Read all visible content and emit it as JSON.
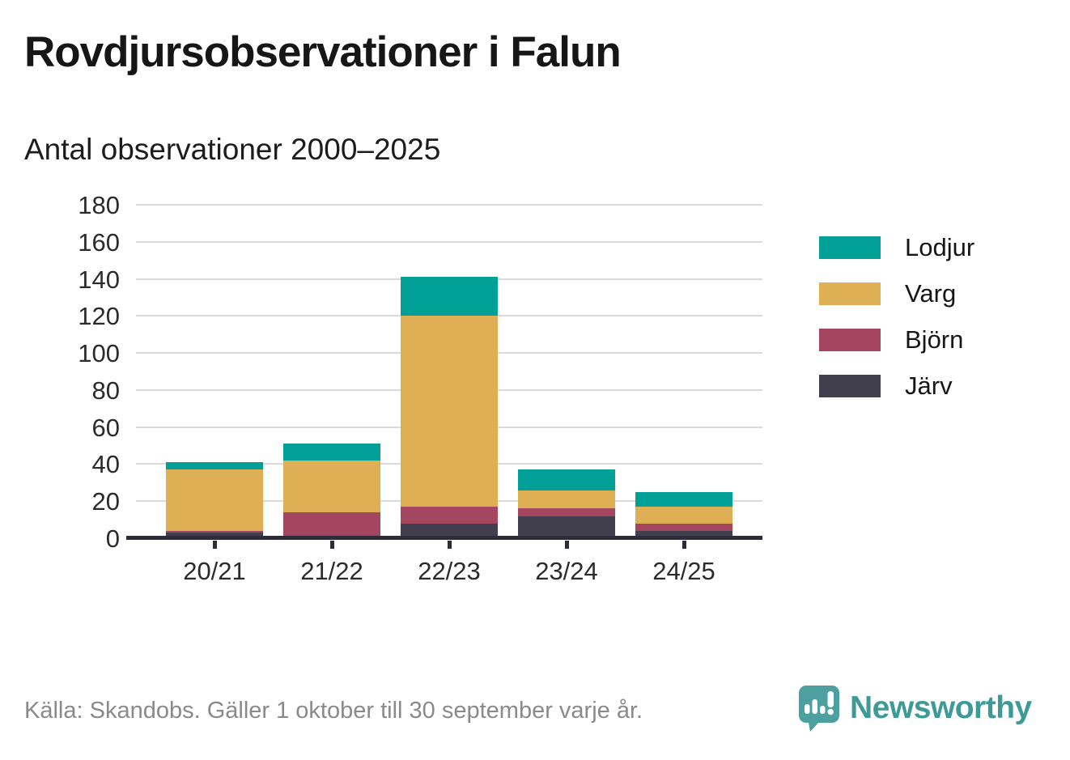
{
  "header": {
    "title": "Rovdjursobservationer i Falun",
    "subtitle": "Antal observationer 2000–2025"
  },
  "chart_data": {
    "type": "bar",
    "stacked": true,
    "title": "Rovdjursobservationer i Falun",
    "subtitle": "Antal observationer 2000–2025",
    "categories": [
      "20/21",
      "21/22",
      "22/23",
      "23/24",
      "24/25"
    ],
    "series": [
      {
        "name": "Järv",
        "color": "#413e4e",
        "values": [
          3,
          0,
          8,
          12,
          4
        ]
      },
      {
        "name": "Björn",
        "color": "#a4465f",
        "values": [
          1,
          14,
          9,
          4,
          4
        ]
      },
      {
        "name": "Varg",
        "color": "#dfaf55",
        "values": [
          33,
          28,
          103,
          10,
          9
        ]
      },
      {
        "name": "Lodjur",
        "color": "#00a096",
        "values": [
          4,
          9,
          21,
          11,
          8
        ]
      }
    ],
    "bar_totals": [
      41,
      51,
      141,
      37,
      25
    ],
    "legend_order": [
      "Lodjur",
      "Varg",
      "Björn",
      "Järv"
    ],
    "legend_position": "right",
    "xlabel": "",
    "ylabel": "",
    "ylim": [
      0,
      180
    ],
    "yticks": [
      0,
      20,
      40,
      60,
      80,
      100,
      120,
      140,
      160,
      180
    ],
    "grid": true
  },
  "footer": {
    "source": "Källa: Skandobs. Gäller 1 oktober till 30 september varje år.",
    "brand": "Newsworthy"
  },
  "colors": {
    "background": "#ffffff",
    "axis": "#2f2c3a",
    "gridline": "#dbdbdb",
    "title_text": "#161616",
    "tick_text": "#2b2b2b",
    "source_text": "#8a8a8a",
    "brand_teal": "#3d9a97"
  }
}
